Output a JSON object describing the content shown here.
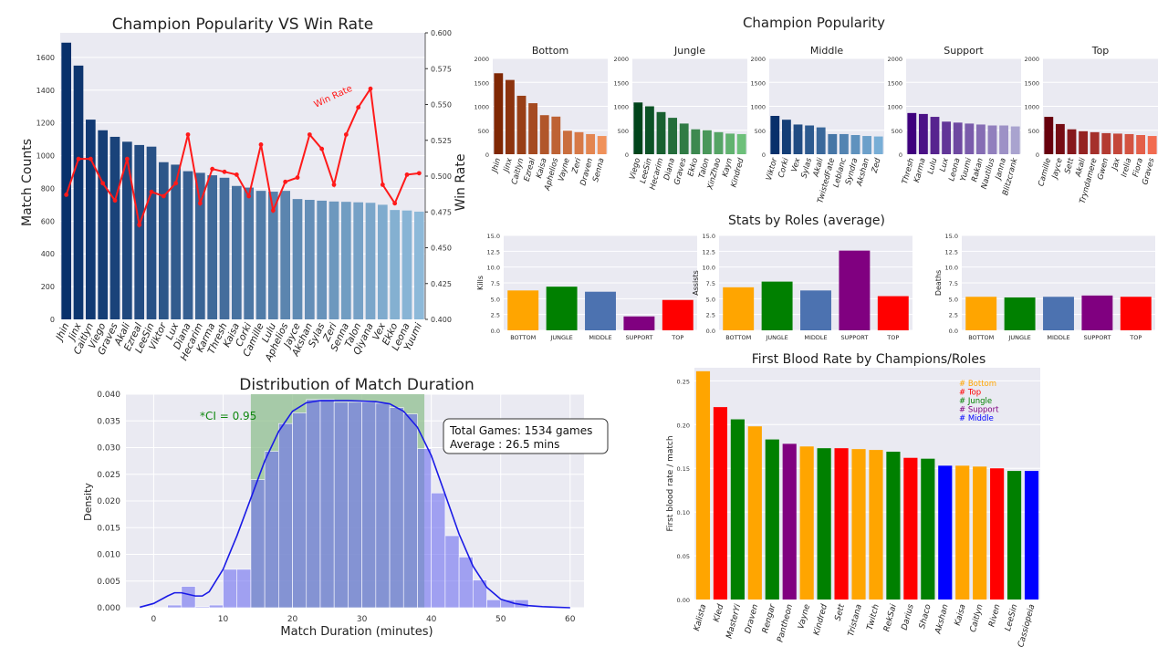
{
  "chart_data": [
    {
      "id": "popularity_vs_winrate",
      "type": "bar",
      "title": "Champion Popularity VS Win Rate",
      "ylabel": "Match Counts",
      "y2label": "Win Rate",
      "ylim": [
        0,
        1750
      ],
      "y2lim": [
        0.4,
        0.6
      ],
      "yticks": [
        0,
        200,
        400,
        600,
        800,
        1000,
        1200,
        1400,
        1600
      ],
      "y2ticks": [
        "0.400",
        "0.425",
        "0.450",
        "0.475",
        "0.500",
        "0.525",
        "0.550",
        "0.575",
        "0.600"
      ],
      "categories": [
        "Jhin",
        "Jinx",
        "Caitlyn",
        "Viego",
        "Graves",
        "Akali",
        "Ezreal",
        "LeeSin",
        "Viktor",
        "Lux",
        "Diana",
        "Hecarim",
        "Karma",
        "Thresh",
        "Kaisa",
        "Corki",
        "Camille",
        "Lulu",
        "Aphelios",
        "Jayce",
        "Akshan",
        "Sylas",
        "Zeri",
        "Senna",
        "Talon",
        "Qiyana",
        "Vex",
        "Ekko",
        "Leona",
        "Yuumi"
      ],
      "values": [
        1690,
        1550,
        1220,
        1155,
        1115,
        1085,
        1065,
        1055,
        960,
        945,
        905,
        895,
        880,
        865,
        815,
        805,
        785,
        780,
        785,
        735,
        730,
        725,
        720,
        718,
        715,
        712,
        700,
        668,
        665,
        658
      ],
      "series_line": {
        "name": "Win Rate",
        "values": [
          0.487,
          0.512,
          0.512,
          0.495,
          0.483,
          0.512,
          0.466,
          0.489,
          0.486,
          0.495,
          0.529,
          0.481,
          0.505,
          0.503,
          0.501,
          0.486,
          0.522,
          0.476,
          0.496,
          0.499,
          0.529,
          0.519,
          0.494,
          0.529,
          0.548,
          0.561,
          0.494,
          0.481,
          0.501,
          0.502
        ]
      },
      "annotation": "Win Rate"
    },
    {
      "id": "champion_popularity_by_role",
      "type": "bar",
      "title": "Champion Popularity",
      "ylim": [
        0,
        2000
      ],
      "yticks": [
        0,
        500,
        1000,
        1500,
        2000
      ],
      "panels": [
        {
          "name": "Bottom",
          "categories": [
            "Jhin",
            "Jinx",
            "Caitlyn",
            "Ezreal",
            "Kaisa",
            "Aphelios",
            "Vayne",
            "Zeri",
            "Draven",
            "Senna"
          ],
          "values": [
            1690,
            1550,
            1220,
            1065,
            815,
            785,
            490,
            460,
            420,
            380
          ]
        },
        {
          "name": "Jungle",
          "categories": [
            "Viego",
            "LeeSin",
            "Hecarim",
            "Diana",
            "Graves",
            "Ekko",
            "Talon",
            "XinZhao",
            "Kayn",
            "Kindred"
          ],
          "values": [
            1080,
            1000,
            880,
            760,
            640,
            520,
            500,
            460,
            430,
            420
          ]
        },
        {
          "name": "Middle",
          "categories": [
            "Viktor",
            "Corki",
            "Vex",
            "Sylas",
            "Akali",
            "TwistedFate",
            "Leblanc",
            "Syndra",
            "Akshan",
            "Zed"
          ],
          "values": [
            800,
            720,
            620,
            600,
            560,
            420,
            420,
            400,
            380,
            370
          ]
        },
        {
          "name": "Support",
          "categories": [
            "Thresh",
            "Karma",
            "Lulu",
            "Lux",
            "Leona",
            "Yuumi",
            "Rakan",
            "Nautilus",
            "Janna",
            "Blitzcrank"
          ],
          "values": [
            860,
            840,
            780,
            680,
            660,
            640,
            620,
            600,
            600,
            580
          ]
        },
        {
          "name": "Top",
          "categories": [
            "Camille",
            "Jayce",
            "Sett",
            "Akali",
            "Tryndamere",
            "Gwen",
            "Jax",
            "Irelia",
            "Fiora",
            "Graves"
          ],
          "values": [
            780,
            630,
            520,
            480,
            460,
            440,
            430,
            420,
            400,
            380
          ]
        }
      ]
    },
    {
      "id": "stats_by_roles",
      "type": "bar",
      "title": "Stats by Roles (average)",
      "ylim": [
        0,
        15
      ],
      "yticks": [
        "0.0",
        "2.5",
        "5.0",
        "7.5",
        "10.0",
        "12.5",
        "15.0"
      ],
      "categories": [
        "BOTTOM",
        "JUNGLE",
        "MIDDLE",
        "SUPPORT",
        "TOP"
      ],
      "colors": [
        "#FFA500",
        "#008000",
        "#4C72B0",
        "#800080",
        "#FF0000"
      ],
      "panels": [
        {
          "ylabel": "Kills",
          "values": [
            6.3,
            6.9,
            6.1,
            2.2,
            4.8
          ]
        },
        {
          "ylabel": "Assists",
          "values": [
            6.8,
            7.7,
            6.3,
            12.6,
            5.4
          ]
        },
        {
          "ylabel": "Deaths",
          "values": [
            5.3,
            5.2,
            5.3,
            5.5,
            5.3
          ]
        }
      ]
    },
    {
      "id": "match_duration",
      "type": "histogram",
      "title": "Distribution of Match Duration",
      "xlabel": "Match Duration (minutes)",
      "ylabel": "Density",
      "xlim": [
        -4,
        62
      ],
      "ylim": [
        0,
        0.04
      ],
      "xticks": [
        0,
        10,
        20,
        30,
        40,
        50,
        60
      ],
      "yticks": [
        "0.000",
        "0.005",
        "0.010",
        "0.015",
        "0.020",
        "0.025",
        "0.030",
        "0.035",
        "0.040"
      ],
      "bin_edges": [
        2,
        4,
        6,
        8,
        10,
        12,
        14,
        16,
        18,
        20,
        22,
        24,
        26,
        28,
        30,
        32,
        34,
        36,
        38,
        40,
        42,
        44,
        46,
        48,
        50,
        52,
        54
      ],
      "density": [
        0.0005,
        0.004,
        0.0002,
        0.0005,
        0.0072,
        0.0072,
        0.024,
        0.0293,
        0.0345,
        0.0365,
        0.039,
        0.039,
        0.0385,
        0.0385,
        0.0385,
        0.0383,
        0.0375,
        0.0363,
        0.0298,
        0.0215,
        0.0135,
        0.0095,
        0.0052,
        0.0015,
        0.0015,
        0.0015
      ],
      "kde_x": [
        -2,
        0,
        2,
        3,
        4,
        5,
        6,
        7,
        8,
        10,
        12,
        14,
        16,
        18,
        20,
        22,
        24,
        26,
        28,
        30,
        32,
        34,
        36,
        38,
        40,
        42,
        44,
        46,
        48,
        50,
        52,
        54,
        56,
        58,
        60
      ],
      "kde_y": [
        0.0001,
        0.0008,
        0.0022,
        0.0028,
        0.0028,
        0.0025,
        0.0022,
        0.0022,
        0.003,
        0.0072,
        0.0135,
        0.0205,
        0.0275,
        0.033,
        0.0368,
        0.0384,
        0.0388,
        0.0388,
        0.0388,
        0.0387,
        0.0386,
        0.0382,
        0.0368,
        0.0338,
        0.0285,
        0.0212,
        0.0138,
        0.0078,
        0.0038,
        0.0016,
        0.0008,
        0.0004,
        0.0002,
        0.0001,
        0.0
      ],
      "ci_range": [
        14,
        39
      ],
      "ci_label": "*CI = 0.95",
      "info_line1": "Total Games: 1534 games",
      "info_line2": "Average : 26.5 mins"
    },
    {
      "id": "first_blood_rate",
      "type": "bar",
      "title": "First Blood Rate by Champions/Roles",
      "ylabel": "First blood rate / match",
      "ylim": [
        0,
        0.265
      ],
      "yticks": [
        "0.00",
        "0.05",
        "0.10",
        "0.15",
        "0.20",
        "0.25"
      ],
      "categories": [
        "Kalista",
        "Kled",
        "MasterYi",
        "Draven",
        "Rengar",
        "Pantheon",
        "Vayne",
        "Kindred",
        "Sett",
        "Tristana",
        "Twitch",
        "RekSai",
        "Darius",
        "Shaco",
        "Akshan",
        "Kaisa",
        "Caitlyn",
        "Riven",
        "LeeSin",
        "Cassiopeia"
      ],
      "values": [
        0.261,
        0.22,
        0.206,
        0.198,
        0.183,
        0.178,
        0.175,
        0.173,
        0.173,
        0.172,
        0.171,
        0.169,
        0.162,
        0.161,
        0.153,
        0.153,
        0.152,
        0.15,
        0.147,
        0.147
      ],
      "roles": [
        "Bottom",
        "Top",
        "Jungle",
        "Bottom",
        "Jungle",
        "Support",
        "Bottom",
        "Jungle",
        "Top",
        "Bottom",
        "Bottom",
        "Jungle",
        "Top",
        "Jungle",
        "Middle",
        "Bottom",
        "Bottom",
        "Top",
        "Jungle",
        "Middle"
      ],
      "legend": [
        {
          "label": "# Bottom",
          "color": "#FFA500"
        },
        {
          "label": "# Top",
          "color": "#FF0000"
        },
        {
          "label": "# Jungle",
          "color": "#008000"
        },
        {
          "label": "# Support",
          "color": "#800080"
        },
        {
          "label": "# Middle",
          "color": "#0000FF"
        }
      ]
    }
  ]
}
